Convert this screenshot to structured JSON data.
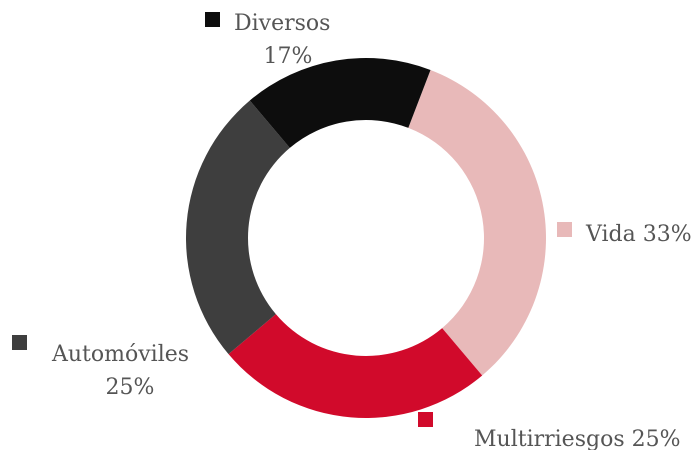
{
  "chart_data": {
    "type": "donut",
    "categories": [
      "Vida",
      "Multirriesgos",
      "Automóviles",
      "Diversos"
    ],
    "values": [
      33,
      25,
      25,
      17
    ],
    "value_labels": [
      "33%",
      "25%",
      "25%",
      "17%"
    ],
    "colors": [
      "#e8b9b9",
      "#d10a2b",
      "#3e3e3e",
      "#0d0d0d"
    ]
  }
}
